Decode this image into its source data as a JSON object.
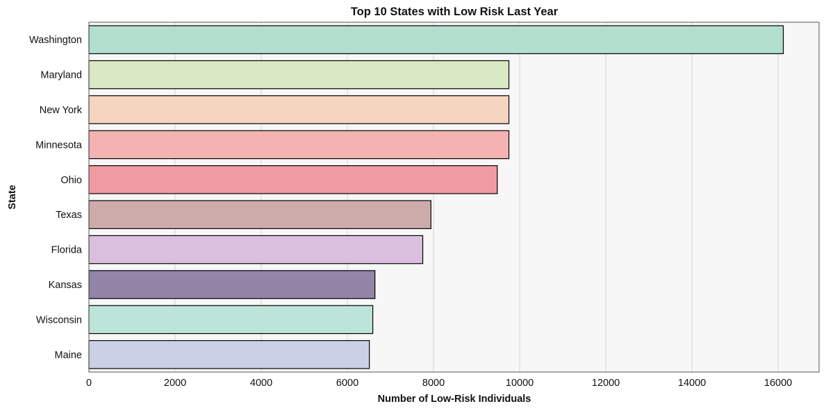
{
  "chart_data": {
    "type": "bar",
    "orientation": "horizontal",
    "title": "Top 10 States with Low Risk Last Year",
    "xlabel": "Number of Low-Risk Individuals",
    "ylabel": "State",
    "categories": [
      "Washington",
      "Maryland",
      "New York",
      "Minnesota",
      "Ohio",
      "Texas",
      "Florida",
      "Kansas",
      "Wisconsin",
      "Maine"
    ],
    "values": [
      16120,
      9750,
      9750,
      9750,
      9480,
      7940,
      7750,
      6640,
      6590,
      6510
    ],
    "colors": [
      "#b2dfce",
      "#d9e8c5",
      "#f5d5c0",
      "#f4b3b2",
      "#f09aa1",
      "#ceabab",
      "#dbbfdf",
      "#9484a7",
      "#bde4d8",
      "#cbd0e6"
    ],
    "xlim": [
      0,
      16950
    ],
    "xticks": [
      0,
      2000,
      4000,
      6000,
      8000,
      10000,
      12000,
      14000,
      16000
    ],
    "grid": "x",
    "plot_background": "#f7f7f7"
  }
}
